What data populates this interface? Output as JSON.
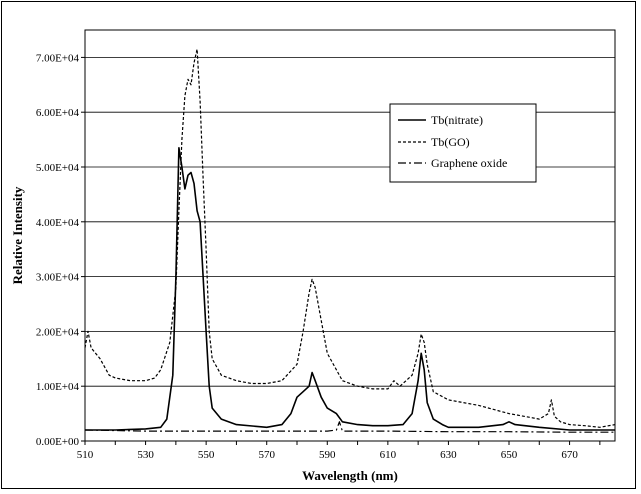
{
  "chart_data": {
    "type": "line",
    "title": "",
    "xlabel": "Wavelength (nm)",
    "ylabel": "Relative Intensity",
    "xlim": [
      510,
      685
    ],
    "ylim": [
      0,
      75000
    ],
    "xticks": [
      510,
      530,
      550,
      570,
      590,
      610,
      630,
      650,
      670
    ],
    "yticks": [
      0,
      10000,
      20000,
      30000,
      40000,
      50000,
      60000,
      70000
    ],
    "ytick_labels": [
      "0.00E+00",
      "1.00E+04",
      "2.00E+04",
      "3.00E+04",
      "4.00E+04",
      "5.00E+04",
      "6.00E+04",
      "7.00E+04"
    ],
    "grid": "horizontal",
    "legend_position": "top-right",
    "series": [
      {
        "name": "Tb(nitrate)",
        "style": "solid",
        "x": [
          510,
          520,
          530,
          535,
          537,
          539,
          540,
          541,
          542,
          543,
          544,
          545,
          546,
          547,
          548,
          549,
          550,
          551,
          552,
          555,
          560,
          570,
          575,
          578,
          580,
          582,
          584,
          585,
          586,
          588,
          590,
          593,
          595,
          600,
          605,
          610,
          615,
          618,
          620,
          621,
          622,
          623,
          625,
          628,
          630,
          640,
          648,
          650,
          652,
          660,
          670,
          680,
          685
        ],
        "y": [
          2000,
          2000,
          2200,
          2500,
          4000,
          12000,
          30000,
          53500,
          50000,
          46000,
          48500,
          49000,
          47000,
          42000,
          40000,
          30000,
          20000,
          10000,
          6000,
          4000,
          3000,
          2500,
          3000,
          5000,
          8000,
          9000,
          10000,
          12500,
          11000,
          8000,
          6000,
          5000,
          3500,
          3000,
          2800,
          2800,
          3000,
          5000,
          11000,
          16000,
          13000,
          7000,
          4000,
          3000,
          2500,
          2500,
          3000,
          3500,
          3000,
          2500,
          2000,
          2000,
          2000
        ]
      },
      {
        "name": "Tb(GO)",
        "style": "dashed",
        "x": [
          510,
          511,
          512,
          515,
          518,
          520,
          525,
          530,
          533,
          535,
          538,
          540,
          541,
          542,
          543,
          544,
          545,
          546,
          547,
          548,
          549,
          550,
          551,
          552,
          555,
          560,
          565,
          570,
          575,
          580,
          582,
          584,
          585,
          586,
          588,
          590,
          593,
          595,
          600,
          605,
          610,
          612,
          614,
          618,
          620,
          621,
          622,
          623,
          625,
          630,
          640,
          650,
          655,
          660,
          663,
          664,
          665,
          667,
          670,
          675,
          680,
          685
        ],
        "y": [
          17000,
          20000,
          17000,
          15000,
          12000,
          11500,
          11000,
          11000,
          11500,
          13000,
          18000,
          28000,
          42000,
          55000,
          63000,
          66000,
          65000,
          69000,
          71500,
          62000,
          48000,
          35000,
          20000,
          15000,
          12000,
          11000,
          10500,
          10500,
          11000,
          14000,
          20000,
          27000,
          29500,
          28000,
          22000,
          16000,
          13000,
          11000,
          10000,
          9500,
          9500,
          11000,
          10000,
          12000,
          16000,
          19500,
          18000,
          14000,
          9000,
          7500,
          6500,
          5000,
          4500,
          4000,
          5000,
          7500,
          4500,
          3500,
          3000,
          2800,
          2500,
          3000
        ]
      },
      {
        "name": "Graphene oxide",
        "style": "dash-dot",
        "x": [
          510,
          530,
          550,
          570,
          590,
          593,
          594,
          595,
          610,
          630,
          650,
          670,
          685
        ],
        "y": [
          2000,
          1800,
          1800,
          1800,
          1800,
          2000,
          3500,
          1800,
          1800,
          1700,
          1700,
          1600,
          1600
        ]
      }
    ]
  }
}
